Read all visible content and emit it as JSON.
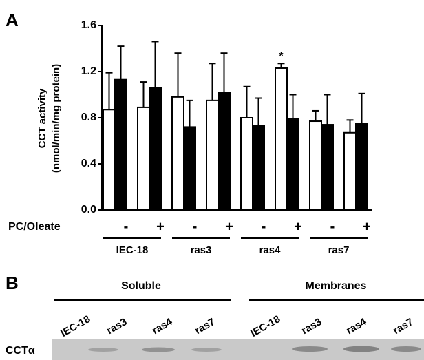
{
  "panel_a": "A",
  "panel_b": "B",
  "chart_data": {
    "type": "bar",
    "y_label_lines": [
      "CCT activity",
      "(nmol/min/mg protein)"
    ],
    "x_row_label": "PC/Oleate",
    "categories": [
      "-",
      "+",
      "-",
      "+",
      "-",
      "+",
      "-",
      "+"
    ],
    "groups": [
      "IEC-18",
      "ras3",
      "ras4",
      "ras7"
    ],
    "series": [
      {
        "color": "#ffffff",
        "values": [
          0.87,
          0.89,
          0.98,
          0.95,
          0.8,
          1.23,
          0.77,
          0.67
        ],
        "errors": [
          0.32,
          0.22,
          0.38,
          0.32,
          0.27,
          0.04,
          0.09,
          0.11
        ]
      },
      {
        "color": "#000000",
        "values": [
          1.13,
          1.06,
          0.72,
          1.02,
          0.73,
          0.79,
          0.74,
          0.75
        ],
        "errors": [
          0.29,
          0.4,
          0.23,
          0.34,
          0.24,
          0.21,
          0.26,
          0.26
        ]
      }
    ],
    "annotation": "*",
    "ylim": [
      0,
      1.6
    ],
    "yticks": [
      {
        "value": 0,
        "label": "0.0"
      },
      0.4,
      0.8,
      1.2,
      1.6
    ]
  },
  "blot": {
    "sections": [
      "Soluble",
      "Membranes"
    ],
    "lanes": [
      [
        "IEC-18",
        "ras3",
        "ras4",
        "ras7"
      ],
      [
        "IEC-18",
        "ras3",
        "ras4",
        "ras7"
      ]
    ],
    "row_label": "CCTα"
  }
}
